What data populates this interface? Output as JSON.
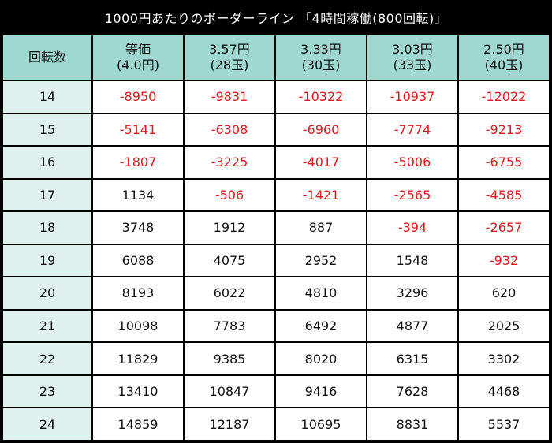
{
  "title": "1000円あたりのボーダーライン 「4時間稼働(800回転)」",
  "header": {
    "first": "回転数",
    "columns": [
      {
        "line1": "等価",
        "line2": "(4.0円)"
      },
      {
        "line1": "3.57円",
        "line2": "(28玉)"
      },
      {
        "line1": "3.33円",
        "line2": "(30玉)"
      },
      {
        "line1": "3.03円",
        "line2": "(33玉)"
      },
      {
        "line1": "2.50円",
        "line2": "(40玉)"
      }
    ]
  },
  "rows": [
    {
      "rot": "14",
      "vals": [
        "-8950",
        "-9831",
        "-10322",
        "-10937",
        "-12022"
      ]
    },
    {
      "rot": "15",
      "vals": [
        "-5141",
        "-6308",
        "-6960",
        "-7774",
        "-9213"
      ]
    },
    {
      "rot": "16",
      "vals": [
        "-1807",
        "-3225",
        "-4017",
        "-5006",
        "-6755"
      ]
    },
    {
      "rot": "17",
      "vals": [
        "1134",
        "-506",
        "-1421",
        "-2565",
        "-4585"
      ]
    },
    {
      "rot": "18",
      "vals": [
        "3748",
        "1912",
        "887",
        "-394",
        "-2657"
      ]
    },
    {
      "rot": "19",
      "vals": [
        "6088",
        "4075",
        "2952",
        "1548",
        "-932"
      ]
    },
    {
      "rot": "20",
      "vals": [
        "8193",
        "6022",
        "4810",
        "3296",
        "620"
      ]
    },
    {
      "rot": "21",
      "vals": [
        "10098",
        "7783",
        "6492",
        "4877",
        "2025"
      ]
    },
    {
      "rot": "22",
      "vals": [
        "11829",
        "9385",
        "8020",
        "6315",
        "3302"
      ]
    },
    {
      "rot": "23",
      "vals": [
        "13410",
        "10847",
        "9416",
        "7628",
        "4468"
      ]
    },
    {
      "rot": "24",
      "vals": [
        "14859",
        "12187",
        "10695",
        "8831",
        "5537"
      ]
    }
  ],
  "colors": {
    "header_bg": "#9ed8d1",
    "rot_col_bg": "#dff1ee",
    "negative": "#e0181e",
    "frame": "#000000"
  }
}
